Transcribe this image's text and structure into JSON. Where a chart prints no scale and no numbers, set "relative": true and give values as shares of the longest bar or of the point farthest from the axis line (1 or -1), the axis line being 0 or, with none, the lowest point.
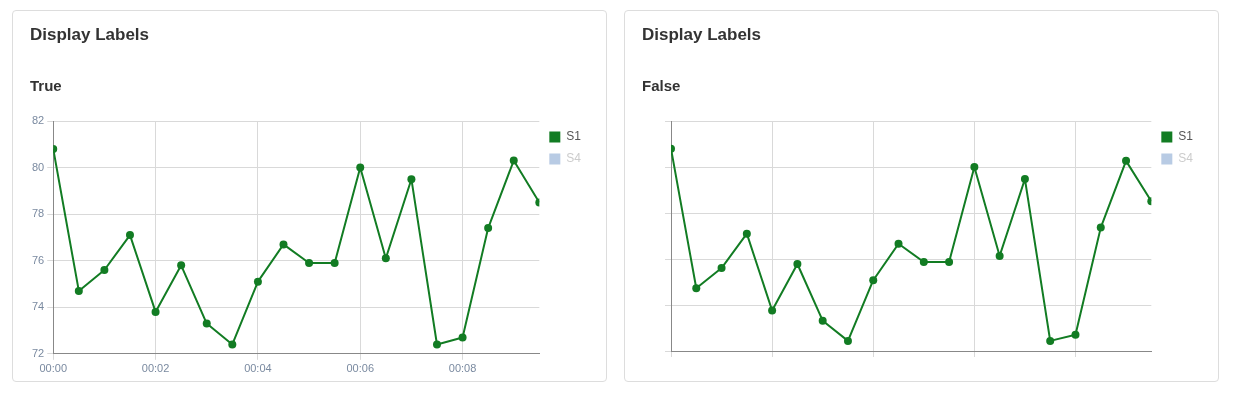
{
  "chart_data": [
    {
      "type": "line",
      "title": "Display Labels",
      "subtitle": "True",
      "x": [
        0,
        0.5,
        1,
        1.5,
        2,
        2.5,
        3,
        3.5,
        4,
        4.5,
        5,
        5.5,
        6,
        6.5,
        7,
        7.5,
        8,
        8.5,
        9,
        9.5
      ],
      "series": [
        {
          "name": "S1",
          "color": "#127c23",
          "values": [
            80.8,
            74.7,
            75.6,
            77.1,
            73.8,
            75.8,
            73.3,
            72.4,
            75.1,
            76.7,
            75.9,
            75.9,
            80.0,
            76.1,
            79.5,
            72.4,
            72.7,
            77.4,
            80.3,
            78.5
          ]
        },
        {
          "name": "S4",
          "color": "#b8cbe4",
          "values": [
            null,
            null,
            null,
            null,
            null,
            null,
            null,
            null,
            null,
            null,
            null,
            null,
            null,
            null,
            null,
            null,
            null,
            null,
            null,
            null
          ]
        }
      ],
      "xlim": [
        0,
        9.5
      ],
      "xticks": [
        {
          "value": 0,
          "label": "00:00"
        },
        {
          "value": 2,
          "label": "00:02"
        },
        {
          "value": 4,
          "label": "00:04"
        },
        {
          "value": 6,
          "label": "00:06"
        },
        {
          "value": 8,
          "label": "00:08"
        }
      ],
      "ylim": [
        72,
        82
      ],
      "yticks": [
        72,
        74,
        76,
        78,
        80,
        82
      ],
      "grid": true,
      "legend": "top right",
      "marker": "circle",
      "line_style": "solid"
    },
    {
      "type": "line",
      "title": "Display Labels",
      "subtitle": "False",
      "relative": true,
      "categories": [
        null,
        null,
        null,
        null,
        null,
        null,
        null,
        null,
        null,
        null,
        null,
        null,
        null,
        null,
        null,
        null,
        null,
        null,
        null,
        null
      ],
      "series": [
        {
          "name": "S1",
          "color": "#127c23",
          "values": [
            1,
            0.31,
            0.41,
            0.58,
            0.2,
            0.43,
            0.15,
            0.05,
            0.35,
            0.53,
            0.44,
            0.44,
            0.91,
            0.47,
            0.85,
            0.05,
            0.08,
            0.61,
            0.94,
            0.74
          ]
        },
        {
          "name": "S4",
          "color": "#b8cbe4",
          "values": [
            null,
            null,
            null,
            null,
            null,
            null,
            null,
            null,
            null,
            null,
            null,
            null,
            null,
            null,
            null,
            null,
            null,
            null,
            null,
            null
          ]
        }
      ],
      "grid": true,
      "legend": "top right",
      "marker": "circle",
      "line_style": "solid",
      "tick_labels": false
    }
  ]
}
